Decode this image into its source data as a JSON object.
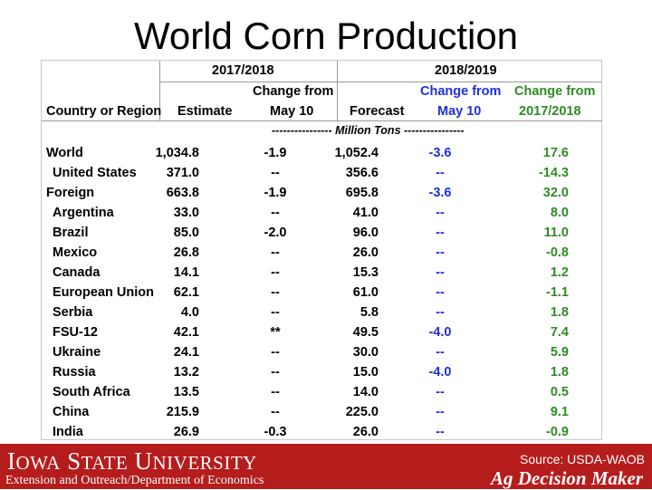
{
  "title": "World Corn Production",
  "headers": {
    "group1": "2017/2018",
    "group2": "2018/2019",
    "country": "Country or Region",
    "estimate": "Estimate",
    "change_may_line1": "Change from",
    "change_may_line2": "May 10",
    "forecast": "Forecast",
    "change_may2_line1": "Change from",
    "change_may2_line2": "May 10",
    "change_prev_line1": "Change from",
    "change_prev_line2": "2017/2018"
  },
  "unit_line": "---------------- Million Tons ----------------",
  "rows": [
    {
      "country": "World",
      "estimate": "1,034.8",
      "chg_may": "-1.9",
      "forecast": "1,052.4",
      "chg_may2": "-3.6",
      "chg_prev": "17.6"
    },
    {
      "country": "United States",
      "estimate": "371.0",
      "chg_may": "--",
      "forecast": "356.6",
      "chg_may2": "--",
      "chg_prev": "-14.3"
    },
    {
      "country": "Foreign",
      "estimate": "663.8",
      "chg_may": "-1.9",
      "forecast": "695.8",
      "chg_may2": "-3.6",
      "chg_prev": "32.0"
    },
    {
      "country": "Argentina",
      "estimate": "33.0",
      "chg_may": "--",
      "forecast": "41.0",
      "chg_may2": "--",
      "chg_prev": "8.0"
    },
    {
      "country": "Brazil",
      "estimate": "85.0",
      "chg_may": "-2.0",
      "forecast": "96.0",
      "chg_may2": "--",
      "chg_prev": "11.0"
    },
    {
      "country": "Mexico",
      "estimate": "26.8",
      "chg_may": "--",
      "forecast": "26.0",
      "chg_may2": "--",
      "chg_prev": "-0.8"
    },
    {
      "country": "Canada",
      "estimate": "14.1",
      "chg_may": "--",
      "forecast": "15.3",
      "chg_may2": "--",
      "chg_prev": "1.2"
    },
    {
      "country": "European Union",
      "estimate": "62.1",
      "chg_may": "--",
      "forecast": "61.0",
      "chg_may2": "--",
      "chg_prev": "-1.1"
    },
    {
      "country": "Serbia",
      "estimate": "4.0",
      "chg_may": "--",
      "forecast": "5.8",
      "chg_may2": "--",
      "chg_prev": "1.8"
    },
    {
      "country": "FSU-12",
      "estimate": "42.1",
      "chg_may": "**",
      "forecast": "49.5",
      "chg_may2": "-4.0",
      "chg_prev": "7.4"
    },
    {
      "country": "Ukraine",
      "estimate": "24.1",
      "chg_may": "--",
      "forecast": "30.0",
      "chg_may2": "--",
      "chg_prev": "5.9"
    },
    {
      "country": "Russia",
      "estimate": "13.2",
      "chg_may": "--",
      "forecast": "15.0",
      "chg_may2": "-4.0",
      "chg_prev": "1.8"
    },
    {
      "country": "South Africa",
      "estimate": "13.5",
      "chg_may": "--",
      "forecast": "14.0",
      "chg_may2": "--",
      "chg_prev": "0.5"
    },
    {
      "country": "China",
      "estimate": "215.9",
      "chg_may": "--",
      "forecast": "225.0",
      "chg_may2": "--",
      "chg_prev": "9.1"
    },
    {
      "country": "India",
      "estimate": "26.9",
      "chg_may": "-0.3",
      "forecast": "26.0",
      "chg_may2": "--",
      "chg_prev": "-0.9"
    }
  ],
  "footer": {
    "university": "Iowa State University",
    "department": "Extension and Outreach/Department of Economics",
    "source": "Source: USDA-WAOB",
    "brand": "Ag Decision Maker"
  },
  "colors": {
    "blue": "#1f2fe0",
    "green": "#2e8b24",
    "footer_red": "#b51c1c"
  }
}
